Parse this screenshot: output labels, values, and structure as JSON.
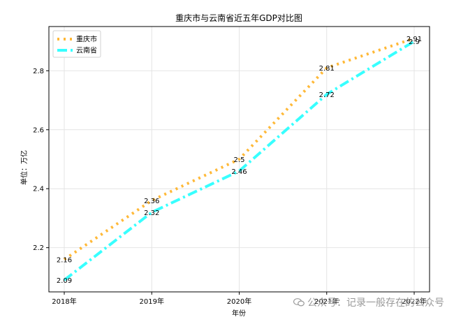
{
  "chart_data": {
    "type": "line",
    "title": "重庆市与云南省近五年GDP对比图",
    "xlabel": "年份",
    "ylabel": "单位：万亿",
    "categories": [
      "2018年",
      "2019年",
      "2020年",
      "2021年",
      "2022年"
    ],
    "series": [
      {
        "name": "重庆市",
        "values": [
          2.16,
          2.36,
          2.5,
          2.81,
          2.91
        ],
        "color": "#ffa500",
        "style": "dotted",
        "labels": [
          "2.16",
          "2.36",
          "2.5",
          "2.81",
          "2.91"
        ]
      },
      {
        "name": "云南省",
        "values": [
          2.09,
          2.32,
          2.46,
          2.72,
          2.9
        ],
        "color": "#00ffff",
        "style": "dashdot",
        "labels": [
          "2.09",
          "2.32",
          "2.46",
          "2.72",
          "2.9"
        ]
      }
    ],
    "yticks": [
      2.2,
      2.4,
      2.6,
      2.8
    ],
    "ytick_labels": [
      "2.2",
      "2.4",
      "2.6",
      "2.8"
    ],
    "ylim": [
      2.05,
      2.95
    ],
    "grid": true,
    "legend_position": "upper-left"
  },
  "watermark": {
    "text": "公众号：记录一般存在的公众号"
  }
}
